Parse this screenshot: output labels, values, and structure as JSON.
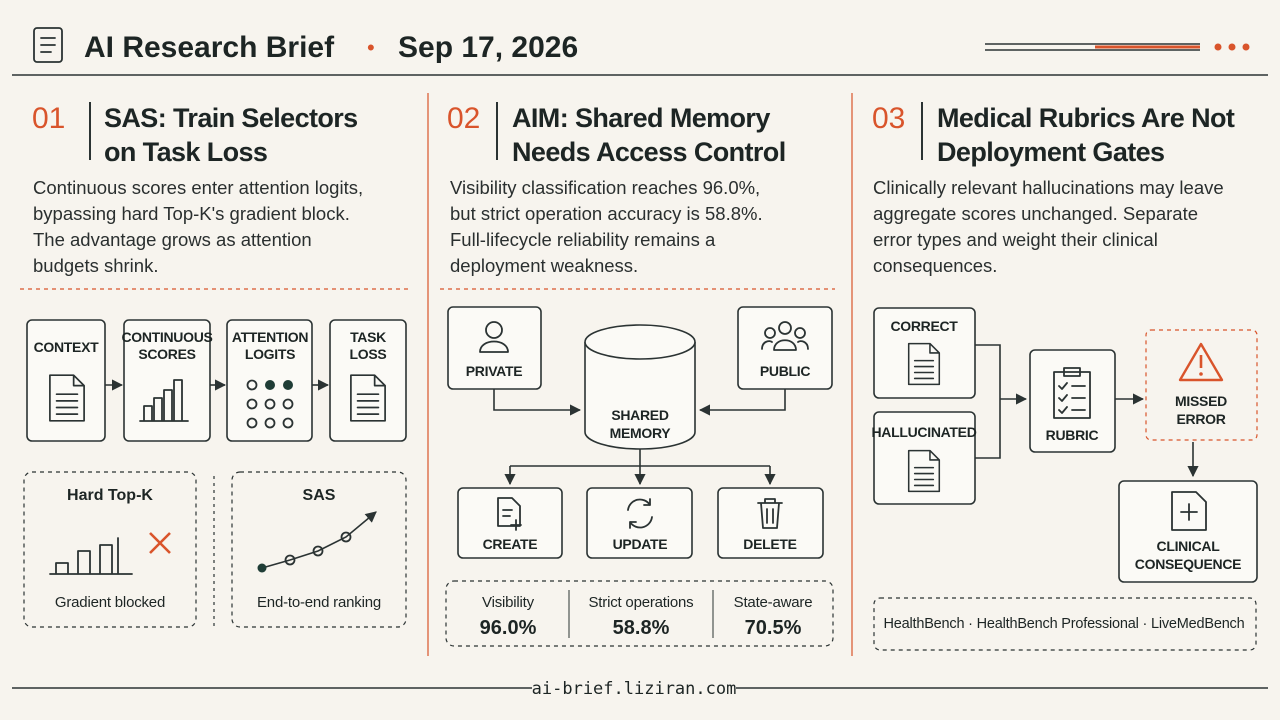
{
  "header": {
    "title": "AI Research Brief",
    "separator": "•",
    "date": "Sep 17, 2026"
  },
  "sections": [
    {
      "number": "01",
      "title": [
        "SAS: Train Selectors",
        "on Task Loss"
      ],
      "body": [
        "Continuous scores enter attention logits,",
        "bypassing hard Top-K's gradient block.",
        "The advantage grows as attention",
        "budgets shrink."
      ],
      "pipeline": [
        [
          "CONTEXT"
        ],
        [
          "CONTINUOUS",
          "SCORES"
        ],
        [
          "ATTENTION",
          "LOGITS"
        ],
        [
          "TASK",
          "LOSS"
        ]
      ],
      "comparison": [
        {
          "title": "Hard Top-K",
          "caption": "Gradient blocked"
        },
        {
          "title": "SAS",
          "caption": "End-to-end ranking"
        }
      ]
    },
    {
      "number": "02",
      "title": [
        "AIM: Shared Memory",
        "Needs Access Control"
      ],
      "body": [
        "Visibility classification reaches 96.0%,",
        "but strict operation accuracy is 58.8%.",
        "Full-lifecycle reliability remains a",
        "deployment weakness."
      ],
      "sources": [
        "PRIVATE",
        "PUBLIC"
      ],
      "store": [
        "SHARED",
        "MEMORY"
      ],
      "operations": [
        "CREATE",
        "UPDATE",
        "DELETE"
      ],
      "stats": [
        {
          "label": "Visibility",
          "value": "96.0%"
        },
        {
          "label": "Strict operations",
          "value": "58.8%"
        },
        {
          "label": "State-aware",
          "value": "70.5%"
        }
      ]
    },
    {
      "number": "03",
      "title": [
        "Medical Rubrics Are Not",
        "Deployment Gates"
      ],
      "body": [
        "Clinically relevant hallucinations may leave",
        "aggregate scores unchanged. Separate",
        "error types and weight their clinical",
        "consequences."
      ],
      "inputs": [
        "CORRECT",
        "HALLUCINATED"
      ],
      "judge": "RUBRIC",
      "outcome": [
        "MISSED",
        "ERROR"
      ],
      "consequence": [
        "CLINICAL",
        "CONSEQUENCE"
      ],
      "benchmarks": "HealthBench · HealthBench Professional · LiveMedBench"
    }
  ],
  "footer": {
    "url": "ai-brief.liziran.com"
  }
}
